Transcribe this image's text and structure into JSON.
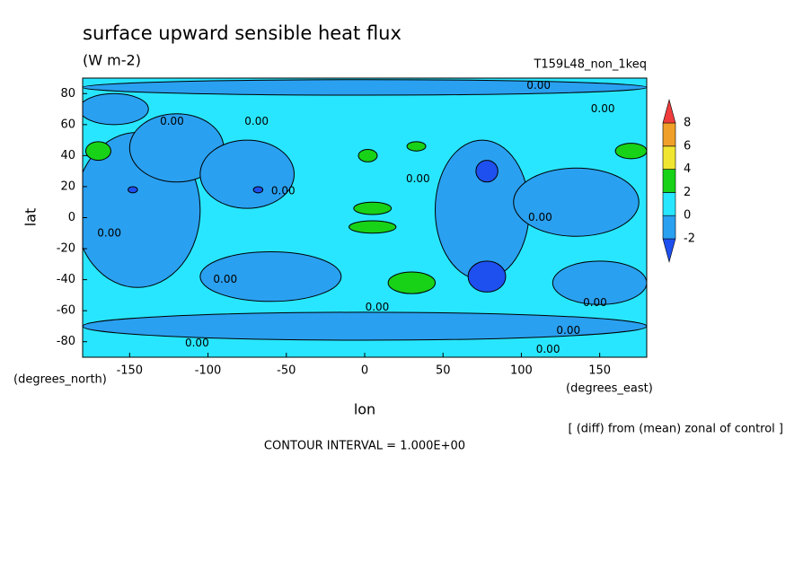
{
  "chart_data": {
    "type": "contour",
    "title": "surface upward sensible heat flux",
    "subtitle": "(W m-2)",
    "run_label": "T159L48_non_1keq",
    "xlabel": "lon",
    "ylabel": "lat",
    "xunit": "(degrees_east)",
    "yunit": "(degrees_north)",
    "note": "[ (diff) from (mean) zonal of control ]",
    "contour_interval": "CONTOUR INTERVAL = 1.000E+00",
    "xlim": [
      -180,
      180
    ],
    "ylim": [
      -90,
      90
    ],
    "xticks": [
      -150,
      -100,
      -50,
      0,
      50,
      100,
      150
    ],
    "yticks": [
      -80,
      -60,
      -40,
      -20,
      0,
      20,
      40,
      60,
      80
    ],
    "background_level": 0,
    "levels": [
      -2,
      0,
      2,
      4,
      6,
      8
    ],
    "level_colors": [
      "#1e50f0",
      "#2aa0f0",
      "#28e6ff",
      "#18d218",
      "#f0e632",
      "#f0a028",
      "#f03c3c"
    ],
    "regions": [
      {
        "value": -2,
        "lon": -145,
        "lat": 5,
        "rx": 40,
        "ry": 50
      },
      {
        "value": -2,
        "lon": -120,
        "lat": 45,
        "rx": 30,
        "ry": 22
      },
      {
        "value": -2,
        "lon": -75,
        "lat": 28,
        "rx": 30,
        "ry": 22
      },
      {
        "value": -2,
        "lon": -60,
        "lat": -38,
        "rx": 45,
        "ry": 16
      },
      {
        "value": -2,
        "lon": 75,
        "lat": 5,
        "rx": 30,
        "ry": 45
      },
      {
        "value": -2,
        "lon": 135,
        "lat": 10,
        "rx": 40,
        "ry": 22
      },
      {
        "value": -2,
        "lon": 150,
        "lat": -42,
        "rx": 30,
        "ry": 14
      },
      {
        "value": -2,
        "lon": 0,
        "lat": -70,
        "rx": 180,
        "ry": 9
      },
      {
        "value": -2,
        "lon": 0,
        "lat": 84,
        "rx": 180,
        "ry": 5
      },
      {
        "value": -2,
        "lon": -160,
        "lat": 70,
        "rx": 22,
        "ry": 10
      },
      {
        "value": 2,
        "lon": -170,
        "lat": 43,
        "rx": 8,
        "ry": 6
      },
      {
        "value": 2,
        "lon": 5,
        "lat": 6,
        "rx": 12,
        "ry": 4
      },
      {
        "value": 2,
        "lon": 5,
        "lat": -6,
        "rx": 15,
        "ry": 4
      },
      {
        "value": 2,
        "lon": 30,
        "lat": -42,
        "rx": 15,
        "ry": 7
      },
      {
        "value": 2,
        "lon": 170,
        "lat": 43,
        "rx": 10,
        "ry": 5
      },
      {
        "value": 2,
        "lon": 2,
        "lat": 40,
        "rx": 6,
        "ry": 4
      },
      {
        "value": 2,
        "lon": 33,
        "lat": 46,
        "rx": 6,
        "ry": 3
      },
      {
        "value": -4,
        "lon": 78,
        "lat": -38,
        "rx": 12,
        "ry": 10
      },
      {
        "value": -4,
        "lon": 78,
        "lat": 30,
        "rx": 7,
        "ry": 7
      },
      {
        "value": -4,
        "lon": -68,
        "lat": 18,
        "rx": 3,
        "ry": 2
      },
      {
        "value": -4,
        "lon": -148,
        "lat": 18,
        "rx": 3,
        "ry": 2
      }
    ],
    "contour_labels": [
      {
        "text": "0.00",
        "lon": -123,
        "lat": 62
      },
      {
        "text": "0.00",
        "lon": -69,
        "lat": 62
      },
      {
        "text": "0.00",
        "lon": -52,
        "lat": 17
      },
      {
        "text": "0.00",
        "lon": -163,
        "lat": -10
      },
      {
        "text": "0.00",
        "lon": -89,
        "lat": -40
      },
      {
        "text": "0.00",
        "lon": 8,
        "lat": -58
      },
      {
        "text": "0.00",
        "lon": -107,
        "lat": -81
      },
      {
        "text": "0.00",
        "lon": 34,
        "lat": 25
      },
      {
        "text": "0.00",
        "lon": 111,
        "lat": 85
      },
      {
        "text": "0.00",
        "lon": 152,
        "lat": 70
      },
      {
        "text": "0.00",
        "lon": 112,
        "lat": 0
      },
      {
        "text": "0.00",
        "lon": 147,
        "lat": -55
      },
      {
        "text": "0.00",
        "lon": 130,
        "lat": -73
      },
      {
        "text": "0.00",
        "lon": 117,
        "lat": -85
      }
    ]
  }
}
